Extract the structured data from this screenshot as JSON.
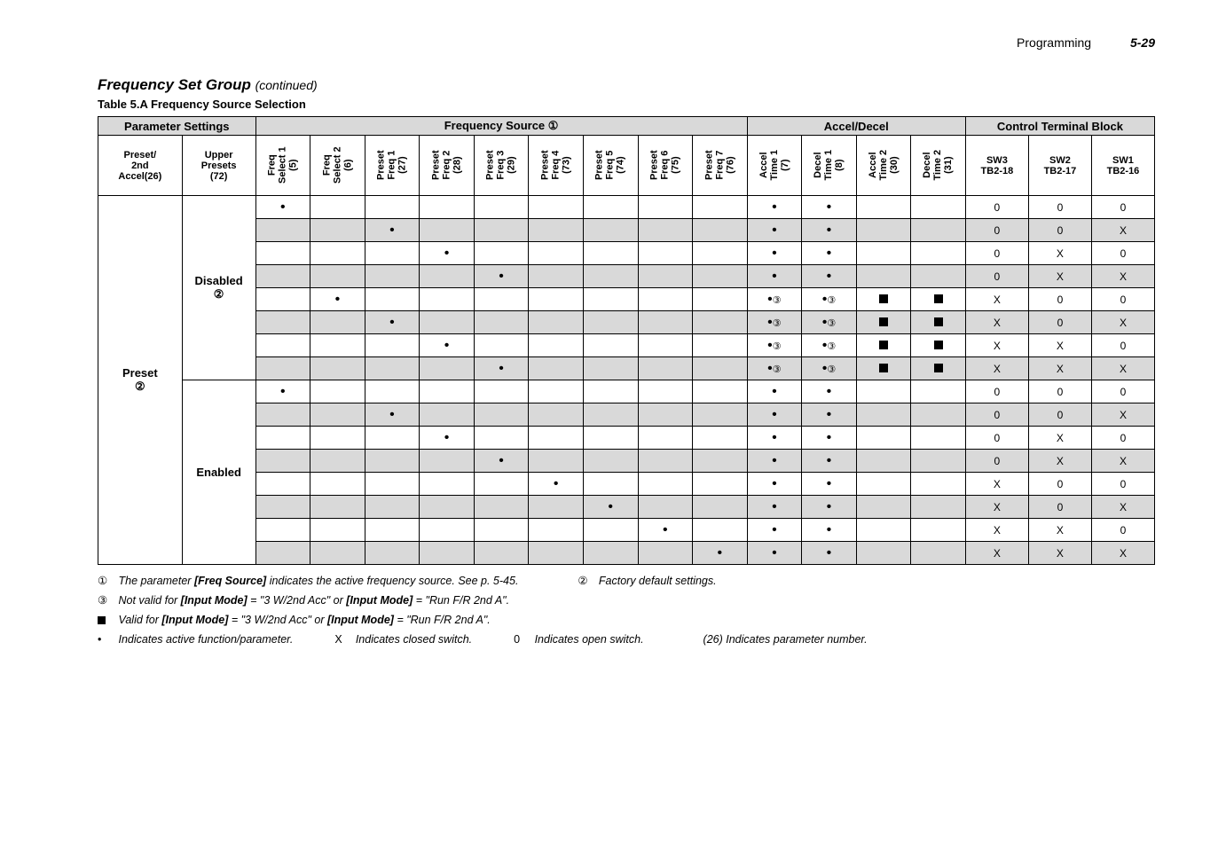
{
  "header": {
    "section": "Programming",
    "page": "5-29"
  },
  "titles": {
    "section": "Frequency Set Group",
    "continued": "(continued)",
    "table": "Table 5.A   Frequency Source Selection"
  },
  "groups": {
    "param": "Parameter Settings",
    "freq": "Frequency Source ①",
    "accel": "Accel/Decel",
    "ctrl": "Control Terminal Block"
  },
  "cols": {
    "c0": "Preset/\n2nd\nAccel(26)",
    "c1": "Upper\nPresets\n(72)",
    "c2": "Freq\nSelect 1\n(5)",
    "c3": "Freq\nSelect 2\n(6)",
    "c4": "Preset\nFreq 1\n(27)",
    "c5": "Preset\nFreq 2\n(28)",
    "c6": "Preset\nFreq 3\n(29)",
    "c7": "Preset\nFreq 4\n(73)",
    "c8": "Preset\nFreq 5\n(74)",
    "c9": "Preset\nFreq 6\n(75)",
    "c10": "Preset\nFreq 7\n(76)",
    "c11": "Accel\nTime 1\n(7)",
    "c12": "Decel\nTime 1\n(8)",
    "c13": "Accel\nTime 2\n(30)",
    "c14": "Decel\nTime 2\n(31)",
    "c15": "SW3\nTB2-18",
    "c16": "SW2\nTB2-17",
    "c17": "SW1\nTB2-16"
  },
  "rowLabels": {
    "preset": "Preset",
    "presetNum": "②",
    "disabled": "Disabled",
    "disabledNum": "②",
    "enabled": "Enabled"
  },
  "marks": {
    "dot": "•",
    "dot3": "•③",
    "sq": "■",
    "zero": "0",
    "x": "X"
  },
  "rows": [
    {
      "shade": false,
      "cells": [
        "•",
        "",
        "",
        "",
        "",
        "",
        "",
        "",
        "",
        "•",
        "•",
        "",
        "",
        "0",
        "0",
        "0"
      ]
    },
    {
      "shade": true,
      "cells": [
        "",
        "",
        "•",
        "",
        "",
        "",
        "",
        "",
        "",
        "•",
        "•",
        "",
        "",
        "0",
        "0",
        "X"
      ]
    },
    {
      "shade": false,
      "cells": [
        "",
        "",
        "",
        "•",
        "",
        "",
        "",
        "",
        "",
        "•",
        "•",
        "",
        "",
        "0",
        "X",
        "0"
      ]
    },
    {
      "shade": true,
      "cells": [
        "",
        "",
        "",
        "",
        "•",
        "",
        "",
        "",
        "",
        "•",
        "•",
        "",
        "",
        "0",
        "X",
        "X"
      ]
    },
    {
      "shade": false,
      "cells": [
        "",
        "•",
        "",
        "",
        "",
        "",
        "",
        "",
        "",
        "•③",
        "•③",
        "■",
        "■",
        "X",
        "0",
        "0"
      ]
    },
    {
      "shade": true,
      "cells": [
        "",
        "",
        "•",
        "",
        "",
        "",
        "",
        "",
        "",
        "•③",
        "•③",
        "■",
        "■",
        "X",
        "0",
        "X"
      ]
    },
    {
      "shade": false,
      "cells": [
        "",
        "",
        "",
        "•",
        "",
        "",
        "",
        "",
        "",
        "•③",
        "•③",
        "■",
        "■",
        "X",
        "X",
        "0"
      ]
    },
    {
      "shade": true,
      "cells": [
        "",
        "",
        "",
        "",
        "•",
        "",
        "",
        "",
        "",
        "•③",
        "•③",
        "■",
        "■",
        "X",
        "X",
        "X"
      ]
    },
    {
      "shade": false,
      "cells": [
        "•",
        "",
        "",
        "",
        "",
        "",
        "",
        "",
        "",
        "•",
        "•",
        "",
        "",
        "0",
        "0",
        "0"
      ]
    },
    {
      "shade": true,
      "cells": [
        "",
        "",
        "•",
        "",
        "",
        "",
        "",
        "",
        "",
        "•",
        "•",
        "",
        "",
        "0",
        "0",
        "X"
      ]
    },
    {
      "shade": false,
      "cells": [
        "",
        "",
        "",
        "•",
        "",
        "",
        "",
        "",
        "",
        "•",
        "•",
        "",
        "",
        "0",
        "X",
        "0"
      ]
    },
    {
      "shade": true,
      "cells": [
        "",
        "",
        "",
        "",
        "•",
        "",
        "",
        "",
        "",
        "•",
        "•",
        "",
        "",
        "0",
        "X",
        "X"
      ]
    },
    {
      "shade": false,
      "cells": [
        "",
        "",
        "",
        "",
        "",
        "•",
        "",
        "",
        "",
        "•",
        "•",
        "",
        "",
        "X",
        "0",
        "0"
      ]
    },
    {
      "shade": true,
      "cells": [
        "",
        "",
        "",
        "",
        "",
        "",
        "•",
        "",
        "",
        "•",
        "•",
        "",
        "",
        "X",
        "0",
        "X"
      ]
    },
    {
      "shade": false,
      "cells": [
        "",
        "",
        "",
        "",
        "",
        "",
        "",
        "•",
        "",
        "•",
        "•",
        "",
        "",
        "X",
        "X",
        "0"
      ]
    },
    {
      "shade": true,
      "cells": [
        "",
        "",
        "",
        "",
        "",
        "",
        "",
        "",
        "•",
        "•",
        "•",
        "",
        "",
        "X",
        "X",
        "X"
      ]
    }
  ],
  "footnotes": {
    "f1a": "The parameter",
    "f1b": "[Freq Source]",
    "f1c": "indicates the active frequency source. See p. 5-45.",
    "f2": "Factory default settings.",
    "f3a": "Not valid for",
    "f3b": "[Input Mode]",
    "f3c": "= \"3 W/2nd Acc\" or",
    "f3d": "[Input Mode]",
    "f3e": "= \"Run F/R 2nd A\".",
    "f4a": "Valid for",
    "f4b": "[Input Mode]",
    "f4c": "= \"3 W/2nd Acc\" or",
    "f4d": "[Input Mode]",
    "f4e": "= \"Run F/R 2nd A\".",
    "f5": "Indicates active function/parameter.",
    "f6": "Indicates closed switch.",
    "f7": "Indicates open switch.",
    "f8": "(26) Indicates parameter number.",
    "sym1": "①",
    "sym2": "②",
    "sym3": "③",
    "symDot": "•",
    "symX": "X",
    "sym0": "0"
  }
}
